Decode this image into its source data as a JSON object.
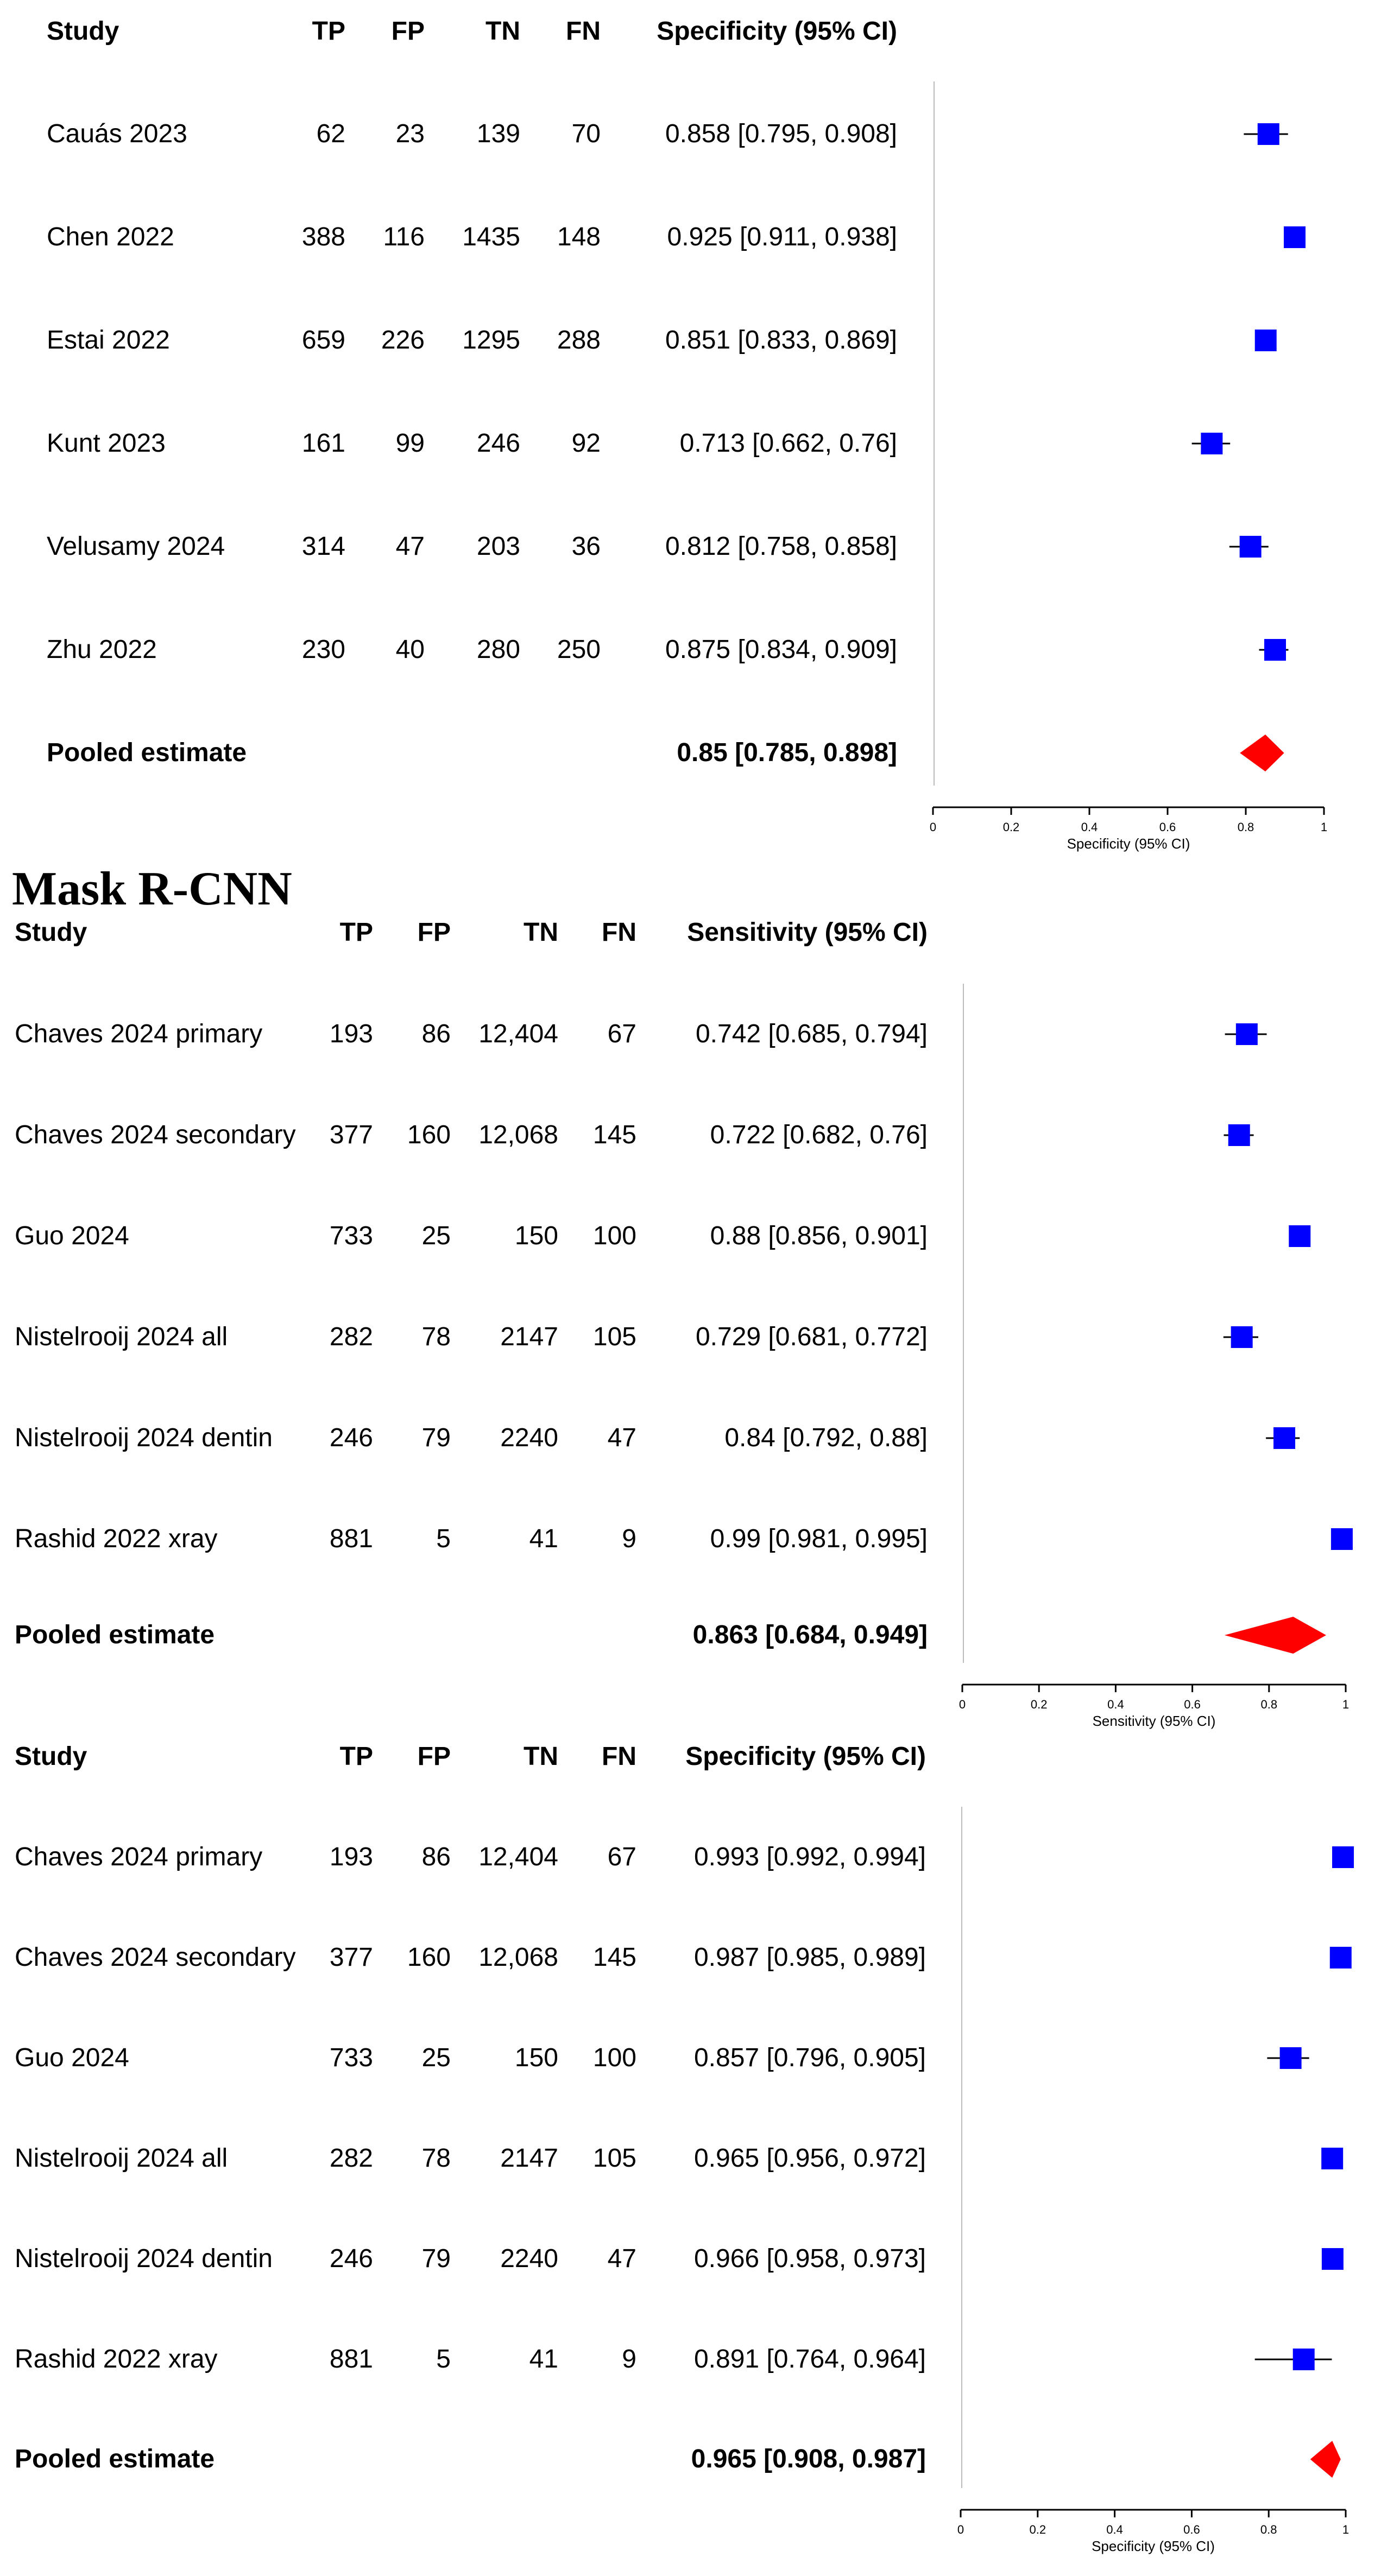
{
  "section_title": "Mask R-CNN",
  "chart_data": [
    {
      "type": "forest",
      "columns": [
        "Study",
        "TP",
        "FP",
        "TN",
        "FN",
        "Specificity (95% CI)"
      ],
      "rows": [
        {
          "study": "Cauás  2023",
          "tp": "62",
          "fp": "23",
          "tn": "139",
          "fn": "70",
          "ci_text": "0.858 [0.795, 0.908]",
          "est": 0.858,
          "lo": 0.795,
          "hi": 0.908
        },
        {
          "study": "Chen 2022",
          "tp": "388",
          "fp": "116",
          "tn": "1435",
          "fn": "148",
          "ci_text": "0.925 [0.911, 0.938]",
          "est": 0.925,
          "lo": 0.911,
          "hi": 0.938
        },
        {
          "study": "Estai 2022",
          "tp": "659",
          "fp": "226",
          "tn": "1295",
          "fn": "288",
          "ci_text": "0.851 [0.833, 0.869]",
          "est": 0.851,
          "lo": 0.833,
          "hi": 0.869
        },
        {
          "study": "Kunt 2023",
          "tp": "161",
          "fp": "99",
          "tn": "246",
          "fn": "92",
          "ci_text": "0.713 [0.662, 0.76]",
          "est": 0.713,
          "lo": 0.662,
          "hi": 0.76
        },
        {
          "study": "Velusamy 2024",
          "tp": "314",
          "fp": "47",
          "tn": "203",
          "fn": "36",
          "ci_text": "0.812 [0.758, 0.858]",
          "est": 0.812,
          "lo": 0.758,
          "hi": 0.858
        },
        {
          "study": "Zhu 2022",
          "tp": "230",
          "fp": "40",
          "tn": "280",
          "fn": "250",
          "ci_text": "0.875 [0.834, 0.909]",
          "est": 0.875,
          "lo": 0.834,
          "hi": 0.909
        }
      ],
      "pooled": {
        "label": "Pooled estimate",
        "ci_text": "0.85 [0.785, 0.898]",
        "est": 0.85,
        "lo": 0.785,
        "hi": 0.898
      },
      "xlabel": "Specificity (95% CI)",
      "xlim": [
        0,
        1
      ],
      "ticks": [
        "0",
        "0.2",
        "0.4",
        "0.6",
        "0.8",
        "1"
      ],
      "colors": {
        "marker": "#0000ff",
        "pooled": "#ff0000"
      }
    },
    {
      "type": "forest",
      "columns": [
        "Study",
        "TP",
        "FP",
        "TN",
        "FN",
        "Sensitivity (95% CI)"
      ],
      "rows": [
        {
          "study": "Chaves 2024 primary",
          "tp": "193",
          "fp": "86",
          "tn": "12,404",
          "fn": "67",
          "ci_text": "0.742 [0.685, 0.794]",
          "est": 0.742,
          "lo": 0.685,
          "hi": 0.794
        },
        {
          "study": "Chaves 2024 secondary",
          "tp": "377",
          "fp": "160",
          "tn": "12,068",
          "fn": "145",
          "ci_text": "0.722 [0.682, 0.76]",
          "est": 0.722,
          "lo": 0.682,
          "hi": 0.76
        },
        {
          "study": "Guo 2024",
          "tp": "733",
          "fp": "25",
          "tn": "150",
          "fn": "100",
          "ci_text": "0.88 [0.856, 0.901]",
          "est": 0.88,
          "lo": 0.856,
          "hi": 0.901
        },
        {
          "study": "Nistelrooij 2024 all",
          "tp": "282",
          "fp": "78",
          "tn": "2147",
          "fn": "105",
          "ci_text": "0.729 [0.681, 0.772]",
          "est": 0.729,
          "lo": 0.681,
          "hi": 0.772
        },
        {
          "study": "Nistelrooij 2024 dentin",
          "tp": "246",
          "fp": "79",
          "tn": "2240",
          "fn": "47",
          "ci_text": "0.84 [0.792, 0.88]",
          "est": 0.84,
          "lo": 0.792,
          "hi": 0.88
        },
        {
          "study": "Rashid 2022 xray",
          "tp": "881",
          "fp": "5",
          "tn": "41",
          "fn": "9",
          "ci_text": "0.99 [0.981, 0.995]",
          "est": 0.99,
          "lo": 0.981,
          "hi": 0.995
        }
      ],
      "pooled": {
        "label": "Pooled estimate",
        "ci_text": "0.863 [0.684, 0.949]",
        "est": 0.863,
        "lo": 0.684,
        "hi": 0.949
      },
      "xlabel": "Sensitivity (95% CI)",
      "xlim": [
        0,
        1
      ],
      "ticks": [
        "0",
        "0.2",
        "0.4",
        "0.6",
        "0.8",
        "1"
      ],
      "colors": {
        "marker": "#0000ff",
        "pooled": "#ff0000"
      }
    },
    {
      "type": "forest",
      "columns": [
        "Study",
        "TP",
        "FP",
        "TN",
        "FN",
        "Specificity (95% CI)"
      ],
      "rows": [
        {
          "study": "Chaves 2024 primary",
          "tp": "193",
          "fp": "86",
          "tn": "12,404",
          "fn": "67",
          "ci_text": "0.993 [0.992, 0.994]",
          "est": 0.993,
          "lo": 0.992,
          "hi": 0.994
        },
        {
          "study": "Chaves 2024 secondary",
          "tp": "377",
          "fp": "160",
          "tn": "12,068",
          "fn": "145",
          "ci_text": "0.987 [0.985, 0.989]",
          "est": 0.987,
          "lo": 0.985,
          "hi": 0.989
        },
        {
          "study": "Guo 2024",
          "tp": "733",
          "fp": "25",
          "tn": "150",
          "fn": "100",
          "ci_text": "0.857 [0.796, 0.905]",
          "est": 0.857,
          "lo": 0.796,
          "hi": 0.905
        },
        {
          "study": "Nistelrooij 2024 all",
          "tp": "282",
          "fp": "78",
          "tn": "2147",
          "fn": "105",
          "ci_text": "0.965 [0.956, 0.972]",
          "est": 0.965,
          "lo": 0.956,
          "hi": 0.972
        },
        {
          "study": "Nistelrooij 2024 dentin",
          "tp": "246",
          "fp": "79",
          "tn": "2240",
          "fn": "47",
          "ci_text": "0.966 [0.958, 0.973]",
          "est": 0.966,
          "lo": 0.958,
          "hi": 0.973
        },
        {
          "study": "Rashid 2022 xray",
          "tp": "881",
          "fp": "5",
          "tn": "41",
          "fn": "9",
          "ci_text": "0.891 [0.764, 0.964]",
          "est": 0.891,
          "lo": 0.764,
          "hi": 0.964
        }
      ],
      "pooled": {
        "label": "Pooled estimate",
        "ci_text": "0.965 [0.908, 0.987]",
        "est": 0.965,
        "lo": 0.908,
        "hi": 0.987
      },
      "xlabel": "Specificity (95% CI)",
      "xlim": [
        0,
        1
      ],
      "ticks": [
        "0",
        "0.2",
        "0.4",
        "0.6",
        "0.8",
        "1"
      ],
      "colors": {
        "marker": "#0000ff",
        "pooled": "#ff0000"
      }
    }
  ]
}
